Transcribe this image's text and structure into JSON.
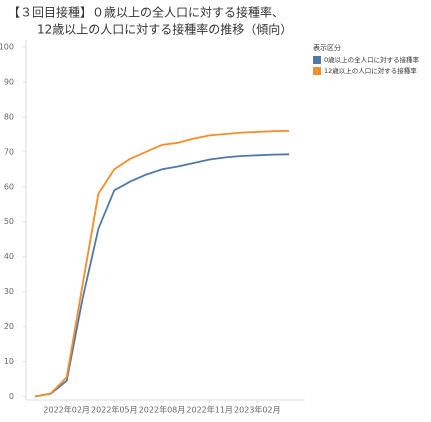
{
  "chart_data": {
    "type": "line",
    "title": [
      "【３回目接種】０歳以上の全人口に対する接種率、",
      "12歳以上の人口に対する接種率の推移（傾向）"
    ],
    "legend_title": "表示区分",
    "x": [
      "2021-12",
      "2022-01",
      "2022-02",
      "2022-03",
      "2022-04",
      "2022-05",
      "2022-06",
      "2022-07",
      "2022-08",
      "2022-09",
      "2022-10",
      "2022-11",
      "2022-12",
      "2023-01",
      "2023-02",
      "2023-03",
      "2023-04"
    ],
    "series": [
      {
        "name": "0歳以上の全人口に対する接種率",
        "color": "#4e79a7",
        "values": [
          0,
          0.8,
          4.5,
          28,
          48,
          59,
          61.5,
          63.5,
          65,
          65.8,
          66.8,
          67.8,
          68.4,
          68.8,
          69.0,
          69.2,
          69.3
        ]
      },
      {
        "name": "12歳以上の人口に対する接種率",
        "color": "#f28e2b",
        "values": [
          0,
          0.9,
          5.5,
          32,
          58,
          65,
          68,
          70,
          72,
          72.6,
          73.8,
          74.7,
          75.1,
          75.5,
          75.7,
          75.9,
          76.0
        ]
      }
    ],
    "xlim": [
      "2021-11",
      "2023-05"
    ],
    "xticks": [
      {
        "value": "2022-02",
        "label": "2022年02月"
      },
      {
        "value": "2022-05",
        "label": "2022年05月"
      },
      {
        "value": "2022-08",
        "label": "2022年08月"
      },
      {
        "value": "2022-11",
        "label": "2022年11月"
      },
      {
        "value": "2023-02",
        "label": "2023年02月"
      }
    ],
    "ylim": [
      -1,
      102
    ],
    "yticks": [
      0,
      10,
      20,
      30,
      40,
      50,
      60,
      70,
      80,
      90,
      100
    ],
    "grid": false,
    "legend": "right"
  }
}
